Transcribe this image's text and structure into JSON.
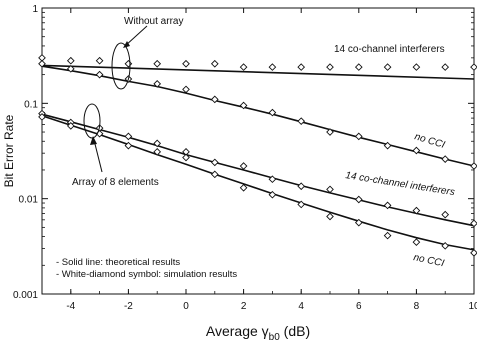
{
  "chart_data": {
    "type": "line",
    "title": "",
    "xlabel": "Average γb0 (dB)",
    "xlabel_parts": {
      "prefix": "Average γ",
      "subscript": "b0",
      "suffix": " (dB)"
    },
    "ylabel": "Bit Error Rate",
    "xlim": [
      -5,
      10
    ],
    "ylim": [
      0.001,
      1
    ],
    "yscale": "log",
    "grid": false,
    "x_ticks": [
      "-4",
      "-2",
      "0",
      "2",
      "4",
      "6",
      "8",
      "10"
    ],
    "y_ticks": [
      "0.001",
      "0.01",
      "0.1",
      "1"
    ],
    "series": [
      {
        "name": "14 co-channel interferers",
        "group": "Without array",
        "theory_x": [
          -5,
          10
        ],
        "theory_y": [
          0.25,
          0.18
        ],
        "sim_x": [
          -5,
          -4,
          -3,
          -2,
          -1,
          0,
          1,
          2,
          3,
          4,
          5,
          6,
          7,
          8,
          9,
          10
        ],
        "sim_y": [
          0.3,
          0.28,
          0.28,
          0.26,
          0.26,
          0.26,
          0.26,
          0.24,
          0.24,
          0.24,
          0.24,
          0.24,
          0.24,
          0.24,
          0.24,
          0.24
        ]
      },
      {
        "name": "no CCI",
        "group": "Without array",
        "theory_x": [
          -5,
          -4,
          -3,
          -2,
          -1,
          0,
          1,
          2,
          3,
          4,
          5,
          6,
          7,
          8,
          9,
          10
        ],
        "theory_y": [
          0.245,
          0.22,
          0.195,
          0.17,
          0.15,
          0.128,
          0.107,
          0.091,
          0.077,
          0.064,
          0.053,
          0.044,
          0.037,
          0.031,
          0.026,
          0.022
        ],
        "sim_x": [
          -5,
          -4,
          -3,
          -2,
          -1,
          0,
          1,
          2,
          3,
          4,
          5,
          6,
          7,
          8,
          9,
          10
        ],
        "sim_y": [
          0.26,
          0.23,
          0.2,
          0.18,
          0.16,
          0.14,
          0.11,
          0.095,
          0.08,
          0.065,
          0.05,
          0.045,
          0.036,
          0.032,
          0.026,
          0.022
        ]
      },
      {
        "name": "14 co-channel interferers",
        "group": "Array of 8 elements",
        "theory_x": [
          -5,
          -4,
          -3,
          -2,
          -1,
          0,
          1,
          2,
          3,
          4,
          5,
          6,
          7,
          8,
          9,
          10
        ],
        "theory_y": [
          0.077,
          0.064,
          0.053,
          0.044,
          0.036,
          0.029,
          0.024,
          0.02,
          0.0165,
          0.0137,
          0.0115,
          0.0097,
          0.0082,
          0.007,
          0.006,
          0.0052
        ],
        "sim_x": [
          -5,
          -4,
          -3,
          -2,
          -1,
          0,
          1,
          2,
          3,
          4,
          5,
          6,
          7,
          8,
          9,
          10
        ],
        "sim_y": [
          0.078,
          0.063,
          0.055,
          0.045,
          0.038,
          0.031,
          0.024,
          0.022,
          0.016,
          0.0135,
          0.0125,
          0.0098,
          0.0085,
          0.0075,
          0.0068,
          0.0055
        ]
      },
      {
        "name": "no CCI",
        "group": "Array of 8 elements",
        "theory_x": [
          -5,
          -4,
          -3,
          -2,
          -1,
          0,
          1,
          2,
          3,
          4,
          5,
          6,
          7,
          8,
          9,
          10
        ],
        "theory_y": [
          0.074,
          0.059,
          0.047,
          0.037,
          0.029,
          0.023,
          0.018,
          0.0143,
          0.0113,
          0.009,
          0.0072,
          0.0058,
          0.0047,
          0.0039,
          0.0033,
          0.0029
        ],
        "sim_x": [
          -5,
          -4,
          -3,
          -2,
          -1,
          0,
          1,
          2,
          3,
          4,
          5,
          6,
          7,
          8,
          9,
          10
        ],
        "sim_y": [
          0.072,
          0.058,
          0.048,
          0.036,
          0.031,
          0.027,
          0.018,
          0.013,
          0.011,
          0.0087,
          0.0065,
          0.0056,
          0.0041,
          0.0035,
          0.0032,
          0.0027
        ]
      }
    ],
    "annotations": {
      "without_array": "Without array",
      "array_of_8": "Array of 8 elements",
      "cci_top": "14 co-channel interferers",
      "nocci_top": "no CCI",
      "cci_bottom": "14 co-channel interferers",
      "nocci_bottom": "no CCI",
      "note_solid": "- Solid line: theoretical results",
      "note_diamond": "- White-diamond symbol: simulation results"
    }
  }
}
